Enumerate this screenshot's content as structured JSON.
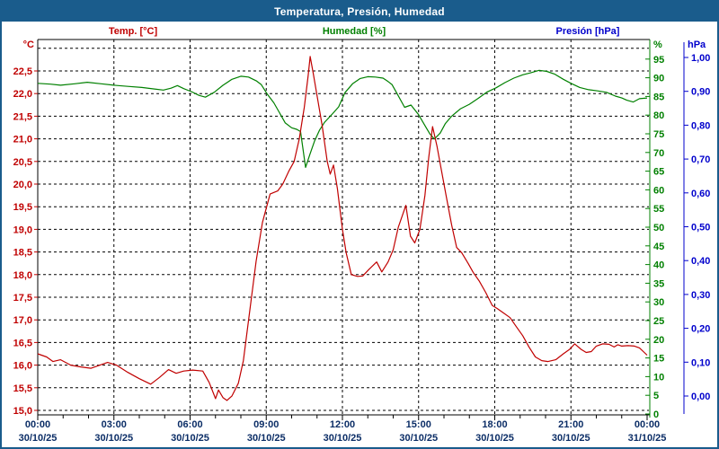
{
  "window": {
    "title": "Temperatura, Presión, Humedad"
  },
  "legend": {
    "temperature": "Temp. [°C]",
    "humidity": "Humedad [%]",
    "pressure": "Presión [hPa]"
  },
  "axis_units": {
    "temperature": "°C",
    "humidity": "%",
    "pressure": "hPa"
  },
  "colors": {
    "temperature": "#c00000",
    "humidity": "#008000",
    "pressure": "#0000cc",
    "titlebar": "#1a5c8c",
    "time_labels": "#0b2d66",
    "grid": "#000000",
    "background": "#ffffff"
  },
  "chart_data": {
    "type": "line",
    "title": "Temperatura, Presión, Humedad",
    "grid": true,
    "legend_position": "top",
    "x_axis": {
      "unit": "time",
      "range_hours": [
        0,
        24
      ],
      "major_tick_hours": 3,
      "minor_tick_hours": 1,
      "tick_times": [
        "00:00",
        "03:00",
        "06:00",
        "09:00",
        "12:00",
        "15:00",
        "18:00",
        "21:00",
        "00:00"
      ],
      "tick_dates": [
        "30/10/25",
        "30/10/25",
        "30/10/25",
        "30/10/25",
        "30/10/25",
        "30/10/25",
        "30/10/25",
        "30/10/25",
        "31/10/25"
      ]
    },
    "y_axes": {
      "temperature": {
        "side": "left",
        "min": 15.0,
        "max": 23.0,
        "grid_step": 0.5,
        "tick_labels": [
          "22,5",
          "22,0",
          "21,5",
          "21,0",
          "20,5",
          "20,0",
          "19,5",
          "19,0",
          "18,5",
          "18,0",
          "17,5",
          "17,0",
          "16,5",
          "16,0",
          "15,5",
          "15,0"
        ],
        "tick_values": [
          22.5,
          22.0,
          21.5,
          21.0,
          20.5,
          20.0,
          19.5,
          19.0,
          18.5,
          18.0,
          17.5,
          17.0,
          16.5,
          16.0,
          15.5,
          15.0
        ]
      },
      "humidity": {
        "side": "right-inner",
        "min": 0,
        "max": 100,
        "tick_step": 5,
        "tick_labels": [
          "95",
          "90",
          "85",
          "80",
          "75",
          "70",
          "65",
          "60",
          "55",
          "50",
          "45",
          "40",
          "35",
          "30",
          "25",
          "20",
          "15",
          "10",
          "5",
          "0"
        ],
        "tick_values": [
          95,
          90,
          85,
          80,
          75,
          70,
          65,
          60,
          55,
          50,
          45,
          40,
          35,
          30,
          25,
          20,
          15,
          10,
          5,
          0
        ]
      },
      "pressure": {
        "side": "right-outer",
        "min": 0.0,
        "max": 1.0,
        "tick_step": 0.1,
        "tick_labels": [
          "1,00",
          "0,90",
          "0,80",
          "0,70",
          "0,60",
          "0,50",
          "0,40",
          "0,30",
          "0,20",
          "0,10",
          "0,00"
        ],
        "tick_values": [
          1.0,
          0.9,
          0.8,
          0.7,
          0.6,
          0.5,
          0.4,
          0.3,
          0.2,
          0.1,
          0.0
        ]
      }
    },
    "series": [
      {
        "name": "humidity",
        "unit": "%",
        "axis": "humidity",
        "color": "#008000",
        "visible": true,
        "points": [
          [
            0,
            88.5
          ],
          [
            0.5,
            88.3
          ],
          [
            0.9,
            88.0
          ],
          [
            1.45,
            88.4
          ],
          [
            1.95,
            88.8
          ],
          [
            2.5,
            88.4
          ],
          [
            3.0,
            88.0
          ],
          [
            3.55,
            87.7
          ],
          [
            4.1,
            87.4
          ],
          [
            4.6,
            87.0
          ],
          [
            4.95,
            86.7
          ],
          [
            5.25,
            87.2
          ],
          [
            5.5,
            87.9
          ],
          [
            5.75,
            87.1
          ],
          [
            6.05,
            86.3
          ],
          [
            6.35,
            85.3
          ],
          [
            6.6,
            84.8
          ],
          [
            6.95,
            86.1
          ],
          [
            7.3,
            88.0
          ],
          [
            7.65,
            89.6
          ],
          [
            8.0,
            90.4
          ],
          [
            8.3,
            90.2
          ],
          [
            8.6,
            89.2
          ],
          [
            8.8,
            88.2
          ],
          [
            9.05,
            85.5
          ],
          [
            9.3,
            83.3
          ],
          [
            9.5,
            80.9
          ],
          [
            9.75,
            77.9
          ],
          [
            10.0,
            76.6
          ],
          [
            10.2,
            76.2
          ],
          [
            10.35,
            75.6
          ],
          [
            10.55,
            66.0
          ],
          [
            10.72,
            69.5
          ],
          [
            10.9,
            73.0
          ],
          [
            11.1,
            76.0
          ],
          [
            11.3,
            78.1
          ],
          [
            11.6,
            80.3
          ],
          [
            11.85,
            82.2
          ],
          [
            12.1,
            86.0
          ],
          [
            12.4,
            88.4
          ],
          [
            12.7,
            89.8
          ],
          [
            13.0,
            90.3
          ],
          [
            13.3,
            90.2
          ],
          [
            13.6,
            89.9
          ],
          [
            13.8,
            89.0
          ],
          [
            13.95,
            88.2
          ],
          [
            14.15,
            85.8
          ],
          [
            14.45,
            82.1
          ],
          [
            14.7,
            82.7
          ],
          [
            15.0,
            80.1
          ],
          [
            15.25,
            77.2
          ],
          [
            15.45,
            74.9
          ],
          [
            15.62,
            73.6
          ],
          [
            15.85,
            75.2
          ],
          [
            16.05,
            77.7
          ],
          [
            16.3,
            79.7
          ],
          [
            16.65,
            81.7
          ],
          [
            17.0,
            82.9
          ],
          [
            17.35,
            84.5
          ],
          [
            17.7,
            86.2
          ],
          [
            18.05,
            87.3
          ],
          [
            18.4,
            88.7
          ],
          [
            18.75,
            89.9
          ],
          [
            19.1,
            90.8
          ],
          [
            19.4,
            91.3
          ],
          [
            19.75,
            92.0
          ],
          [
            20.05,
            91.7
          ],
          [
            20.35,
            91.0
          ],
          [
            20.7,
            89.6
          ],
          [
            21.0,
            88.5
          ],
          [
            21.35,
            87.4
          ],
          [
            21.7,
            86.8
          ],
          [
            22.05,
            86.5
          ],
          [
            22.4,
            86.1
          ],
          [
            22.75,
            85.1
          ],
          [
            23.0,
            84.6
          ],
          [
            23.2,
            84.0
          ],
          [
            23.45,
            83.5
          ],
          [
            23.7,
            84.4
          ],
          [
            24,
            84.6
          ]
        ]
      },
      {
        "name": "temperature",
        "unit": "°C",
        "axis": "temperature",
        "color": "#c00000",
        "visible": true,
        "points": [
          [
            0,
            16.25
          ],
          [
            0.35,
            16.18
          ],
          [
            0.6,
            16.08
          ],
          [
            0.9,
            16.12
          ],
          [
            1.3,
            16.0
          ],
          [
            1.7,
            15.96
          ],
          [
            2.1,
            15.93
          ],
          [
            2.45,
            16.0
          ],
          [
            2.75,
            16.06
          ],
          [
            3.1,
            16.0
          ],
          [
            3.55,
            15.84
          ],
          [
            4.0,
            15.7
          ],
          [
            4.45,
            15.58
          ],
          [
            4.8,
            15.73
          ],
          [
            5.15,
            15.9
          ],
          [
            5.45,
            15.82
          ],
          [
            5.75,
            15.87
          ],
          [
            6.1,
            15.89
          ],
          [
            6.5,
            15.87
          ],
          [
            6.75,
            15.62
          ],
          [
            7.0,
            15.26
          ],
          [
            7.12,
            15.45
          ],
          [
            7.3,
            15.28
          ],
          [
            7.45,
            15.22
          ],
          [
            7.65,
            15.32
          ],
          [
            7.9,
            15.6
          ],
          [
            8.1,
            16.1
          ],
          [
            8.35,
            17.2
          ],
          [
            8.6,
            18.3
          ],
          [
            8.85,
            19.15
          ],
          [
            9.0,
            19.47
          ],
          [
            9.15,
            19.78
          ],
          [
            9.45,
            19.85
          ],
          [
            9.65,
            20.0
          ],
          [
            9.9,
            20.3
          ],
          [
            10.1,
            20.5
          ],
          [
            10.3,
            21.0
          ],
          [
            10.5,
            21.7
          ],
          [
            10.65,
            22.4
          ],
          [
            10.73,
            22.82
          ],
          [
            10.85,
            22.45
          ],
          [
            11.0,
            21.95
          ],
          [
            11.2,
            21.3
          ],
          [
            11.4,
            20.5
          ],
          [
            11.52,
            20.22
          ],
          [
            11.65,
            20.42
          ],
          [
            11.8,
            19.9
          ],
          [
            12.0,
            19.0
          ],
          [
            12.15,
            18.48
          ],
          [
            12.35,
            18.0
          ],
          [
            12.6,
            17.96
          ],
          [
            12.8,
            17.97
          ],
          [
            13.05,
            18.12
          ],
          [
            13.35,
            18.28
          ],
          [
            13.55,
            18.06
          ],
          [
            13.8,
            18.28
          ],
          [
            14.0,
            18.55
          ],
          [
            14.2,
            19.05
          ],
          [
            14.5,
            19.53
          ],
          [
            14.68,
            18.85
          ],
          [
            14.85,
            18.7
          ],
          [
            15.05,
            19.0
          ],
          [
            15.25,
            19.75
          ],
          [
            15.4,
            20.6
          ],
          [
            15.55,
            21.27
          ],
          [
            15.72,
            20.85
          ],
          [
            15.9,
            20.3
          ],
          [
            16.1,
            19.7
          ],
          [
            16.3,
            19.1
          ],
          [
            16.5,
            18.6
          ],
          [
            16.7,
            18.48
          ],
          [
            16.95,
            18.25
          ],
          [
            17.15,
            18.05
          ],
          [
            17.4,
            17.85
          ],
          [
            17.65,
            17.6
          ],
          [
            17.9,
            17.32
          ],
          [
            18.1,
            17.25
          ],
          [
            18.35,
            17.15
          ],
          [
            18.6,
            17.05
          ],
          [
            18.85,
            16.85
          ],
          [
            19.1,
            16.65
          ],
          [
            19.35,
            16.4
          ],
          [
            19.6,
            16.18
          ],
          [
            19.85,
            16.1
          ],
          [
            20.1,
            16.08
          ],
          [
            20.4,
            16.12
          ],
          [
            20.7,
            16.25
          ],
          [
            20.95,
            16.35
          ],
          [
            21.15,
            16.47
          ],
          [
            21.4,
            16.35
          ],
          [
            21.6,
            16.28
          ],
          [
            21.8,
            16.3
          ],
          [
            22.0,
            16.42
          ],
          [
            22.25,
            16.47
          ],
          [
            22.5,
            16.46
          ],
          [
            22.7,
            16.4
          ],
          [
            22.85,
            16.45
          ],
          [
            23.0,
            16.42
          ],
          [
            23.25,
            16.43
          ],
          [
            23.5,
            16.42
          ],
          [
            23.7,
            16.38
          ],
          [
            23.85,
            16.3
          ],
          [
            24,
            16.22
          ]
        ]
      },
      {
        "name": "pressure",
        "unit": "hPa",
        "axis": "pressure",
        "color": "#0000cc",
        "visible": false,
        "points": []
      }
    ]
  }
}
